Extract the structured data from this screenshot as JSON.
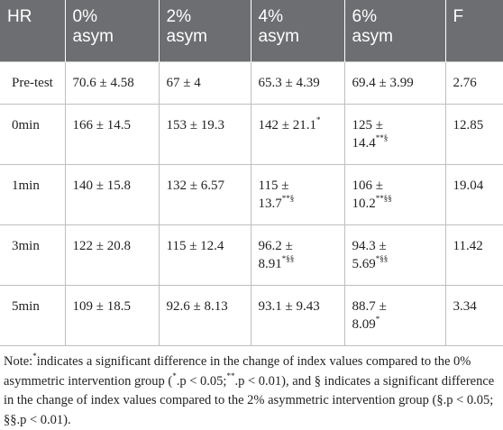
{
  "table": {
    "headers": [
      [
        "HR",
        ""
      ],
      [
        "0%",
        "asym"
      ],
      [
        "2%",
        "asym"
      ],
      [
        "4%",
        "asym"
      ],
      [
        "6%",
        "asym"
      ],
      [
        "F",
        ""
      ]
    ],
    "rows": [
      {
        "label": "Pre-test",
        "cells": [
          {
            "l1": "70.6 ± 4.58",
            "l2": "",
            "sup": ""
          },
          {
            "l1": "67 ± 4",
            "l2": "",
            "sup": ""
          },
          {
            "l1": "65.3 ± 4.39",
            "l2": "",
            "sup": ""
          },
          {
            "l1": "69.4 ± 3.99",
            "l2": "",
            "sup": ""
          }
        ],
        "f": "2.76"
      },
      {
        "label": "0min",
        "cells": [
          {
            "l1": "166 ± 14.5",
            "l2": "",
            "sup": ""
          },
          {
            "l1": "153 ± 19.3",
            "l2": "",
            "sup": ""
          },
          {
            "l1": "142 ± 21.1",
            "l2": "",
            "sup": "*"
          },
          {
            "l1": "125 ±",
            "l2": "14.4",
            "sup": "**§"
          }
        ],
        "f": "12.85"
      },
      {
        "label": "1min",
        "cells": [
          {
            "l1": "140 ± 15.8",
            "l2": "",
            "sup": ""
          },
          {
            "l1": "132 ± 6.57",
            "l2": "",
            "sup": ""
          },
          {
            "l1": "115 ±",
            "l2": "13.7",
            "sup": "**§"
          },
          {
            "l1": "106 ±",
            "l2": "10.2",
            "sup": "**§§"
          }
        ],
        "f": "19.04"
      },
      {
        "label": "3min",
        "cells": [
          {
            "l1": "122 ± 20.8",
            "l2": "",
            "sup": ""
          },
          {
            "l1": "115 ± 12.4",
            "l2": "",
            "sup": ""
          },
          {
            "l1": "96.2 ±",
            "l2": "8.91",
            "sup": "*§§"
          },
          {
            "l1": "94.3 ±",
            "l2": "5.69",
            "sup": "*§§"
          }
        ],
        "f": "11.42"
      },
      {
        "label": "5min",
        "cells": [
          {
            "l1": "109 ± 18.5",
            "l2": "",
            "sup": ""
          },
          {
            "l1": "92.6 ± 8.13",
            "l2": "",
            "sup": ""
          },
          {
            "l1": "93.1 ± 9.43",
            "l2": "",
            "sup": ""
          },
          {
            "l1": "88.7 ±",
            "l2": "8.09",
            "sup": "*"
          }
        ],
        "f": "3.34"
      }
    ]
  },
  "note": {
    "p1": "Note:",
    "s1": "*",
    "p2": "indicates a significant difference in the change of index values compared to the 0% asymmetric intervention group (",
    "s2": "*",
    "p3": ".p < 0.05;",
    "s3": "**",
    "p4": ".p < 0.01), and §  indicates a significant difference in the change of index values compared to the 2% asymmetric intervention group (§.p < 0.05; §§.p < 0.01)."
  }
}
